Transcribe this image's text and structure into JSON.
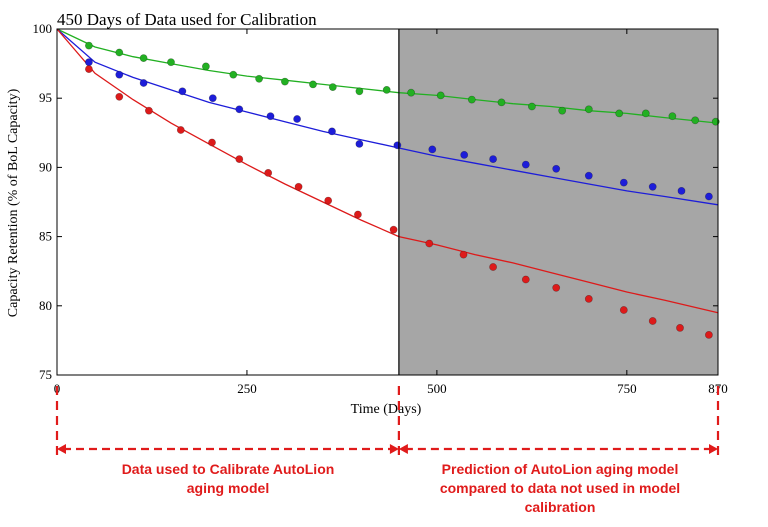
{
  "chart_data": {
    "type": "scatter",
    "title": "450 Days of Data used for Calibration",
    "xlabel": "Time (Days)",
    "ylabel": "Capacity Retention (% of BoL Capacity)",
    "xlim": [
      0,
      870
    ],
    "ylim": [
      75,
      100
    ],
    "x_ticks": [
      0,
      250,
      500,
      750,
      870
    ],
    "y_ticks": [
      75,
      80,
      85,
      90,
      95,
      100
    ],
    "calibration_cutoff": 450,
    "shaded_region": [
      450,
      870
    ],
    "series": [
      {
        "color": "#22b022",
        "points": [
          [
            42,
            98.8
          ],
          [
            82,
            98.3
          ],
          [
            114,
            97.9
          ],
          [
            150,
            97.6
          ],
          [
            196,
            97.3
          ],
          [
            232,
            96.7
          ],
          [
            266,
            96.4
          ],
          [
            300,
            96.2
          ],
          [
            337,
            96.0
          ],
          [
            363,
            95.8
          ],
          [
            398,
            95.5
          ],
          [
            434,
            95.6
          ],
          [
            466,
            95.4
          ],
          [
            505,
            95.2
          ],
          [
            546,
            94.9
          ],
          [
            585,
            94.7
          ],
          [
            625,
            94.4
          ],
          [
            665,
            94.1
          ],
          [
            700,
            94.2
          ],
          [
            740,
            93.9
          ],
          [
            775,
            93.9
          ],
          [
            810,
            93.7
          ],
          [
            840,
            93.4
          ],
          [
            867,
            93.3
          ]
        ],
        "fit": [
          [
            0,
            100
          ],
          [
            50,
            98.7
          ],
          [
            100,
            98.0
          ],
          [
            150,
            97.5
          ],
          [
            200,
            97.0
          ],
          [
            250,
            96.6
          ],
          [
            300,
            96.3
          ],
          [
            350,
            96.0
          ],
          [
            400,
            95.7
          ],
          [
            450,
            95.4
          ],
          [
            500,
            95.2
          ],
          [
            550,
            94.9
          ],
          [
            600,
            94.6
          ],
          [
            650,
            94.4
          ],
          [
            700,
            94.1
          ],
          [
            750,
            93.9
          ],
          [
            800,
            93.6
          ],
          [
            870,
            93.2
          ]
        ]
      },
      {
        "color": "#1d1dd9",
        "points": [
          [
            42,
            97.6
          ],
          [
            82,
            96.7
          ],
          [
            114,
            96.1
          ],
          [
            165,
            95.5
          ],
          [
            205,
            95.0
          ],
          [
            240,
            94.2
          ],
          [
            281,
            93.7
          ],
          [
            316,
            93.5
          ],
          [
            362,
            92.6
          ],
          [
            398,
            91.7
          ],
          [
            448,
            91.6
          ],
          [
            494,
            91.3
          ],
          [
            536,
            90.9
          ],
          [
            574,
            90.6
          ],
          [
            617,
            90.2
          ],
          [
            657,
            89.9
          ],
          [
            700,
            89.4
          ],
          [
            746,
            88.9
          ],
          [
            784,
            88.6
          ],
          [
            822,
            88.3
          ],
          [
            858,
            87.9
          ]
        ],
        "fit": [
          [
            0,
            100
          ],
          [
            50,
            97.6
          ],
          [
            100,
            96.5
          ],
          [
            150,
            95.6
          ],
          [
            200,
            94.7
          ],
          [
            250,
            94.0
          ],
          [
            300,
            93.3
          ],
          [
            350,
            92.6
          ],
          [
            400,
            92.0
          ],
          [
            450,
            91.4
          ],
          [
            500,
            90.8
          ],
          [
            550,
            90.3
          ],
          [
            600,
            89.8
          ],
          [
            650,
            89.3
          ],
          [
            700,
            88.8
          ],
          [
            750,
            88.3
          ],
          [
            800,
            87.9
          ],
          [
            870,
            87.3
          ]
        ]
      },
      {
        "color": "#dd1a1a",
        "points": [
          [
            42,
            97.1
          ],
          [
            82,
            95.1
          ],
          [
            121,
            94.1
          ],
          [
            163,
            92.7
          ],
          [
            204,
            91.8
          ],
          [
            240,
            90.6
          ],
          [
            278,
            89.6
          ],
          [
            318,
            88.6
          ],
          [
            357,
            87.6
          ],
          [
            396,
            86.6
          ],
          [
            443,
            85.5
          ],
          [
            490,
            84.5
          ],
          [
            535,
            83.7
          ],
          [
            574,
            82.8
          ],
          [
            617,
            81.9
          ],
          [
            657,
            81.3
          ],
          [
            700,
            80.5
          ],
          [
            746,
            79.7
          ],
          [
            784,
            78.9
          ],
          [
            820,
            78.4
          ],
          [
            858,
            77.9
          ]
        ],
        "fit": [
          [
            0,
            100
          ],
          [
            50,
            96.8
          ],
          [
            100,
            94.9
          ],
          [
            150,
            93.2
          ],
          [
            200,
            91.7
          ],
          [
            250,
            90.2
          ],
          [
            300,
            88.8
          ],
          [
            350,
            87.5
          ],
          [
            400,
            86.2
          ],
          [
            450,
            85.0
          ],
          [
            500,
            84.4
          ],
          [
            550,
            83.7
          ],
          [
            600,
            83.1
          ],
          [
            650,
            82.4
          ],
          [
            700,
            81.7
          ],
          [
            750,
            81.0
          ],
          [
            800,
            80.4
          ],
          [
            870,
            79.5
          ]
        ]
      }
    ]
  },
  "annotations": {
    "left": "Data used to Calibrate AutoLion aging model",
    "right": "Prediction of AutoLion aging model compared to data not used in model calibration",
    "color": "#e01b1b"
  },
  "colors": {
    "shade": "#a6a6a6",
    "axis": "#000000"
  }
}
